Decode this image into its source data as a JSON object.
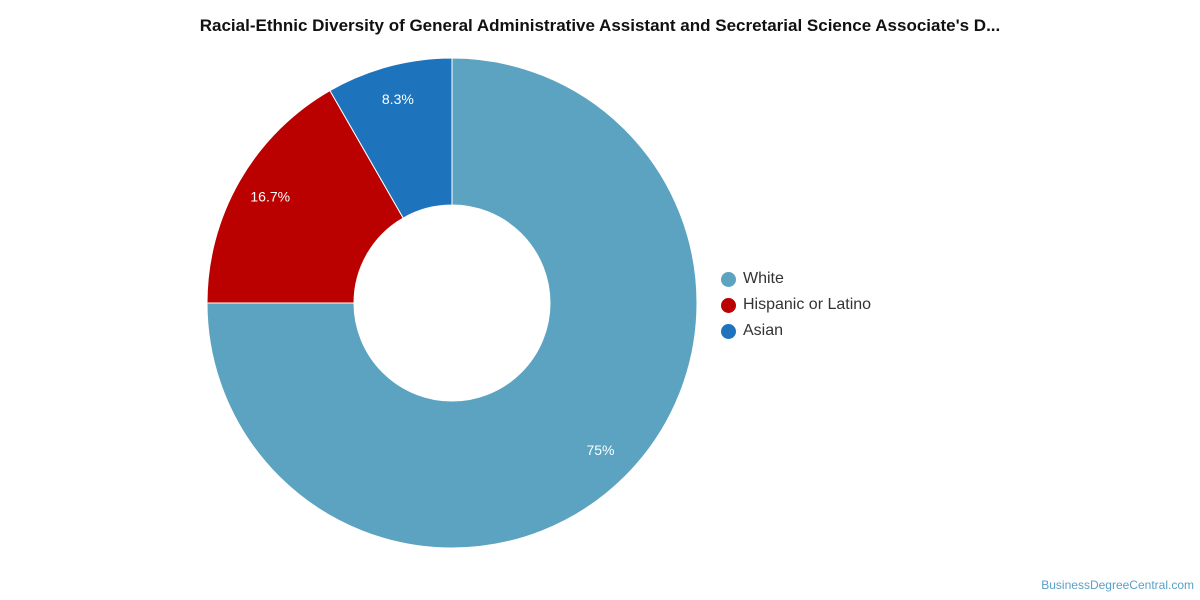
{
  "chart_data": {
    "type": "pie",
    "variant": "donut",
    "title": "Racial-Ethnic Diversity of General Administrative Assistant and Secretarial Science Associate's D...",
    "categories": [
      "White",
      "Hispanic or Latino",
      "Asian"
    ],
    "values": [
      75,
      16.7,
      8.3
    ],
    "value_labels": [
      "75%",
      "16.7%",
      "8.3%"
    ],
    "colors": [
      "#5ba3c0",
      "#bb0000",
      "#1d74bc"
    ],
    "legend_position": "right",
    "start_angle": "12 o'clock",
    "direction": "clockwise"
  },
  "legend": {
    "items": [
      {
        "label": "White",
        "color": "#5ba3c0"
      },
      {
        "label": "Hispanic or Latino",
        "color": "#bb0000"
      },
      {
        "label": "Asian",
        "color": "#1d74bc"
      }
    ]
  },
  "watermark": "BusinessDegreeCentral.com"
}
